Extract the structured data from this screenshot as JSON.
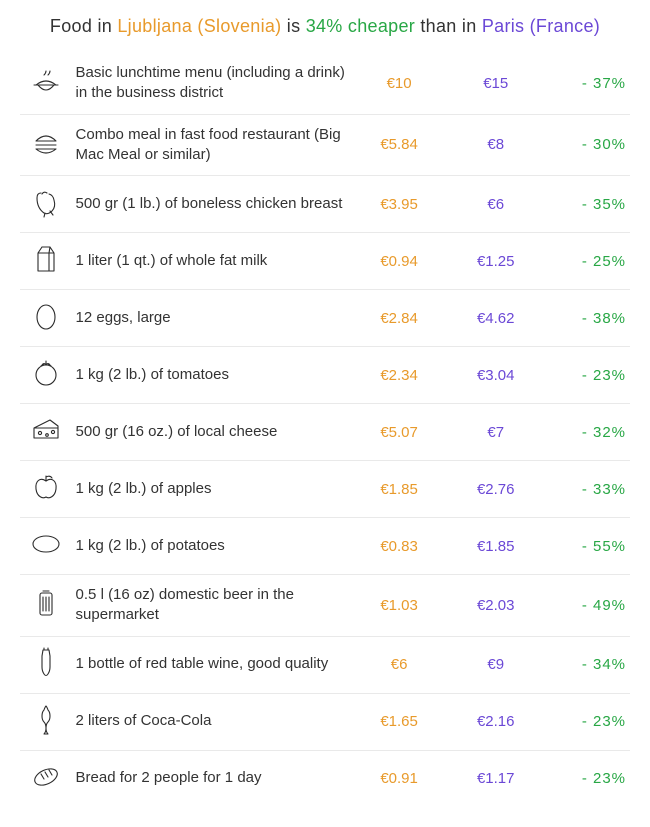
{
  "colors": {
    "city_a": "#e89a2b",
    "city_b": "#6b48d6",
    "diff": "#28a745",
    "text": "#333333",
    "icon_stroke": "#2b2b2b",
    "row_border": "#e9e9e9",
    "background": "#ffffff"
  },
  "headline": {
    "pre": "Food in ",
    "city_a": "Ljubljana (Slovenia)",
    "mid": " is ",
    "pct": "34% cheaper",
    "post": " than in ",
    "city_b": "Paris (France)"
  },
  "table": {
    "columns": [
      "icon",
      "item",
      "price_city_a",
      "price_city_b",
      "diff"
    ],
    "rows": [
      {
        "icon": "lunch-icon",
        "label": "Basic lunchtime menu (including a drink) in the business district",
        "a": "€10",
        "b": "€15",
        "d": "- 37%"
      },
      {
        "icon": "burger-icon",
        "label": "Combo meal in fast food restaurant (Big Mac Meal or similar)",
        "a": "€5.84",
        "b": "€8",
        "d": "- 30%"
      },
      {
        "icon": "chicken-icon",
        "label": "500 gr (1 lb.) of boneless chicken breast",
        "a": "€3.95",
        "b": "€6",
        "d": "- 35%"
      },
      {
        "icon": "milk-icon",
        "label": "1 liter (1 qt.) of whole fat milk",
        "a": "€0.94",
        "b": "€1.25",
        "d": "- 25%"
      },
      {
        "icon": "egg-icon",
        "label": "12 eggs, large",
        "a": "€2.84",
        "b": "€4.62",
        "d": "- 38%"
      },
      {
        "icon": "tomato-icon",
        "label": "1 kg (2 lb.) of tomatoes",
        "a": "€2.34",
        "b": "€3.04",
        "d": "- 23%"
      },
      {
        "icon": "cheese-icon",
        "label": "500 gr (16 oz.) of local cheese",
        "a": "€5.07",
        "b": "€7",
        "d": "- 32%"
      },
      {
        "icon": "apple-icon",
        "label": "1 kg (2 lb.) of apples",
        "a": "€1.85",
        "b": "€2.76",
        "d": "- 33%"
      },
      {
        "icon": "potato-icon",
        "label": "1 kg (2 lb.) of potatoes",
        "a": "€0.83",
        "b": "€1.85",
        "d": "- 55%"
      },
      {
        "icon": "beer-icon",
        "label": "0.5 l (16 oz) domestic beer in the supermarket",
        "a": "€1.03",
        "b": "€2.03",
        "d": "- 49%"
      },
      {
        "icon": "wine-icon",
        "label": "1 bottle of red table wine, good quality",
        "a": "€6",
        "b": "€9",
        "d": "- 34%"
      },
      {
        "icon": "cola-icon",
        "label": "2 liters of Coca-Cola",
        "a": "€1.65",
        "b": "€2.16",
        "d": "- 23%"
      },
      {
        "icon": "bread-icon",
        "label": "Bread for 2 people for 1 day",
        "a": "€0.91",
        "b": "€1.17",
        "d": "- 23%"
      }
    ]
  }
}
